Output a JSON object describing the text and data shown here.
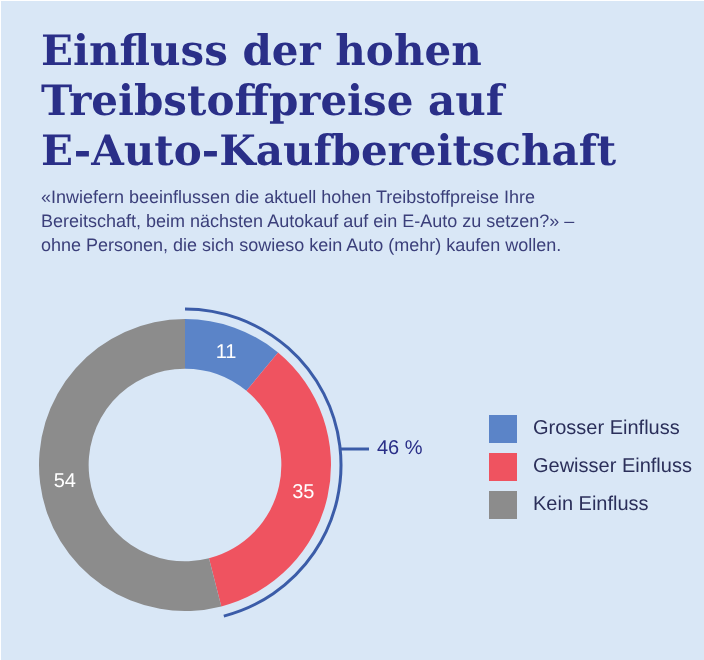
{
  "chart_data": {
    "type": "donut",
    "title": "Einfluss der hohen Treibstoffpreise auf E-Auto-Kaufbereitschaft",
    "subtitle": "«Inwiefern beeinflussen die aktuell hohen Treibstoffpreise Ihre Bereitschaft, beim nächsten Autokauf auf ein E-Auto zu setzen?» – ohne Personen, die sich sowieso kein Auto (mehr) kaufen wollen.",
    "categories": [
      "Grosser Einfluss",
      "Gewisser Einfluss",
      "Kein Einfluss"
    ],
    "values": [
      11,
      35,
      54
    ],
    "colors": [
      "#5b84c8",
      "#ef5360",
      "#8c8c8c"
    ],
    "data_labels": true,
    "legend": "right",
    "annotations": [
      "46 %"
    ]
  }
}
